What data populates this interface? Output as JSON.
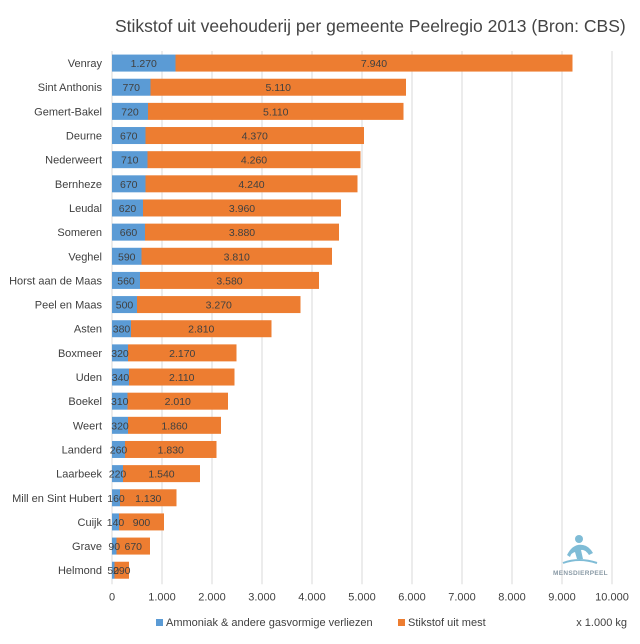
{
  "chart_data": {
    "type": "bar",
    "orientation": "horizontal",
    "stacked": true,
    "title": "Stikstof uit veehouderij per gemeente Peelregio 2013 (Bron: CBS)",
    "xlabel": "",
    "ylabel": "",
    "unit_label": "x 1.000 kg",
    "xlim": [
      0,
      10000
    ],
    "xticks": [
      0,
      1000,
      2000,
      3000,
      4000,
      5000,
      6000,
      7000,
      8000,
      9000,
      10000
    ],
    "xtick_labels": [
      "0",
      "1.000",
      "2.000",
      "3.000",
      "4.000",
      "5.000",
      "6.000",
      "7.000",
      "8.000",
      "9.000",
      "10.000"
    ],
    "grid": true,
    "legend_position": "bottom",
    "categories": [
      "Venray",
      "Sint Anthonis",
      "Gemert-Bakel",
      "Deurne",
      "Nederweert",
      "Bernheze",
      "Leudal",
      "Someren",
      "Veghel",
      "Horst aan de Maas",
      "Peel en Maas",
      "Asten",
      "Boxmeer",
      "Uden",
      "Boekel",
      "Weert",
      "Landerd",
      "Laarbeek",
      "Mill en Sint Hubert",
      "Cuijk",
      "Grave",
      "Helmond"
    ],
    "series": [
      {
        "name": "Ammoniak & andere gasvormige verliezen",
        "color": "#5b9bd5",
        "values": [
          1270,
          770,
          720,
          670,
          710,
          670,
          620,
          660,
          590,
          560,
          500,
          380,
          320,
          340,
          310,
          320,
          260,
          220,
          160,
          140,
          90,
          50
        ],
        "labels": [
          "1.270",
          "770",
          "720",
          "670",
          "710",
          "670",
          "620",
          "660",
          "590",
          "560",
          "500",
          "380",
          "320",
          "340",
          "310",
          "320",
          "260",
          "220",
          "160",
          "140",
          "90",
          "50"
        ]
      },
      {
        "name": "Stikstof uit mest",
        "color": "#ed7d31",
        "values": [
          7940,
          5110,
          5110,
          4370,
          4260,
          4240,
          3960,
          3880,
          3810,
          3580,
          3270,
          2810,
          2170,
          2110,
          2010,
          1860,
          1830,
          1540,
          1130,
          900,
          670,
          290
        ],
        "labels": [
          "7.940",
          "5.110",
          "5.110",
          "4.370",
          "4.260",
          "4.240",
          "3.960",
          "3.880",
          "3.810",
          "3.580",
          "3.270",
          "2.810",
          "2.170",
          "2.110",
          "2.010",
          "1.860",
          "1.830",
          "1.540",
          "1.130",
          "900",
          "670",
          "290"
        ]
      }
    ]
  },
  "watermark": {
    "text": "MENSDIERPEEL",
    "icon": "person-animal-logo-icon"
  }
}
